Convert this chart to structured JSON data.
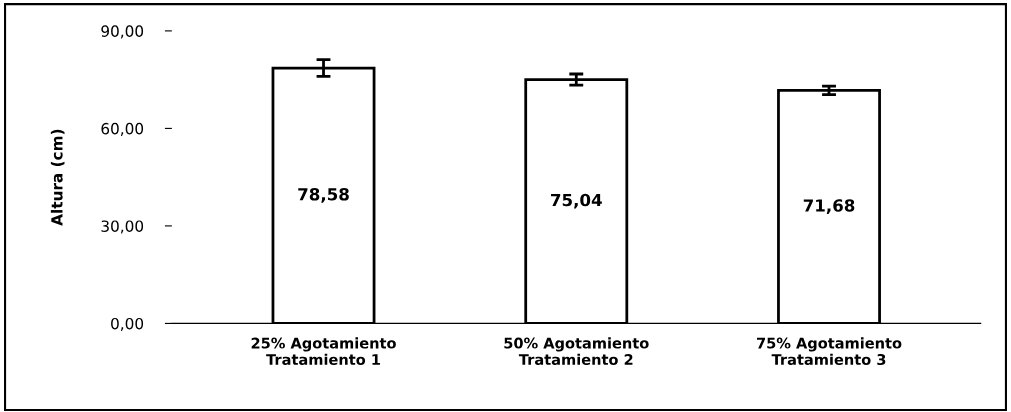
{
  "chart_data": {
    "type": "bar",
    "ylabel": "Altura (cm)",
    "categories": [
      "25% Agotamiento\nTratamiento 1",
      "50% Agotamiento\nTratamiento 2",
      "75% Agotamiento\nTratamiento 3"
    ],
    "values": [
      78.58,
      75.04,
      71.68
    ],
    "errors": [
      2.6,
      1.7,
      1.3
    ],
    "value_labels": [
      "78,58",
      "75,04",
      "71,68"
    ],
    "color": "#ffffff",
    "ylim": [
      0,
      90
    ],
    "yticks": [
      {
        "value": 0,
        "label": "0,00"
      },
      {
        "value": 30,
        "label": "30,00"
      },
      {
        "value": 60,
        "label": "60,00"
      },
      {
        "value": 90,
        "label": "90,00"
      }
    ],
    "grid": false
  }
}
